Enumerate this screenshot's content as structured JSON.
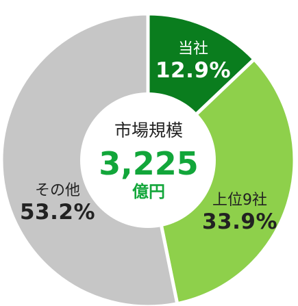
{
  "chart_data": {
    "type": "pie",
    "categories": [
      "当社",
      "上位9社",
      "その他"
    ],
    "values": [
      12.9,
      33.9,
      53.2
    ],
    "value_labels": [
      "12.9%",
      "33.9%",
      "53.2%"
    ],
    "colors": [
      "#0a7d1e",
      "#8ed04b",
      "#c6c6c6"
    ],
    "label_colors": [
      "#ffffff",
      "#222222",
      "#222222"
    ],
    "center": {
      "title": "市場規模",
      "value": "3,225",
      "unit": "億円",
      "value_color": "#12a63a"
    }
  }
}
